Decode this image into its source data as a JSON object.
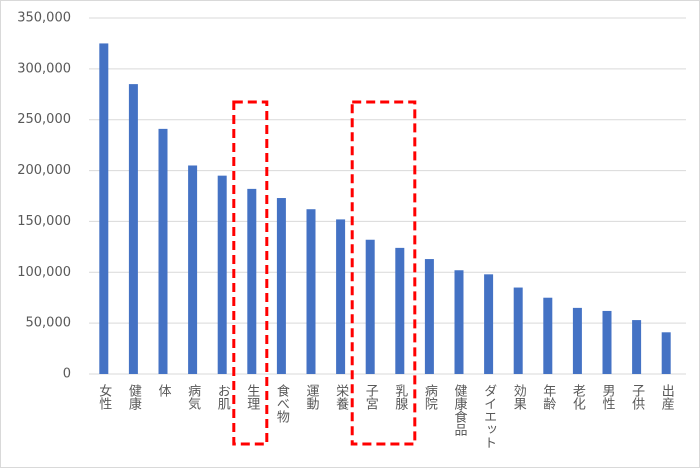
{
  "chart_data": {
    "type": "bar",
    "categories": [
      "女性",
      "健康",
      "体",
      "病気",
      "お肌",
      "生理",
      "食べ物",
      "運動",
      "栄養",
      "子宮",
      "乳腺",
      "病院",
      "健康食品",
      "ダイエット",
      "効果",
      "年齢",
      "老化",
      "男性",
      "子供",
      "出産"
    ],
    "values": [
      325000,
      285000,
      241000,
      205000,
      195000,
      182000,
      173000,
      162000,
      152000,
      132000,
      124000,
      113000,
      102000,
      98000,
      85000,
      75000,
      65000,
      62000,
      53000,
      41000
    ],
    "color": "#4472c4",
    "ylim": [
      0,
      350000
    ],
    "yticks": [
      0,
      {
        "value": 50000,
        "label": "50,000"
      },
      {
        "value": 100000,
        "label": "100,000"
      },
      {
        "value": 150000,
        "label": "150,000"
      },
      {
        "value": 200000,
        "label": "200,000"
      },
      {
        "value": 250000,
        "label": "250,000"
      },
      {
        "value": 300000,
        "label": "300,000"
      },
      {
        "value": 350000,
        "label": "350,000"
      }
    ],
    "grid": true
  }
}
